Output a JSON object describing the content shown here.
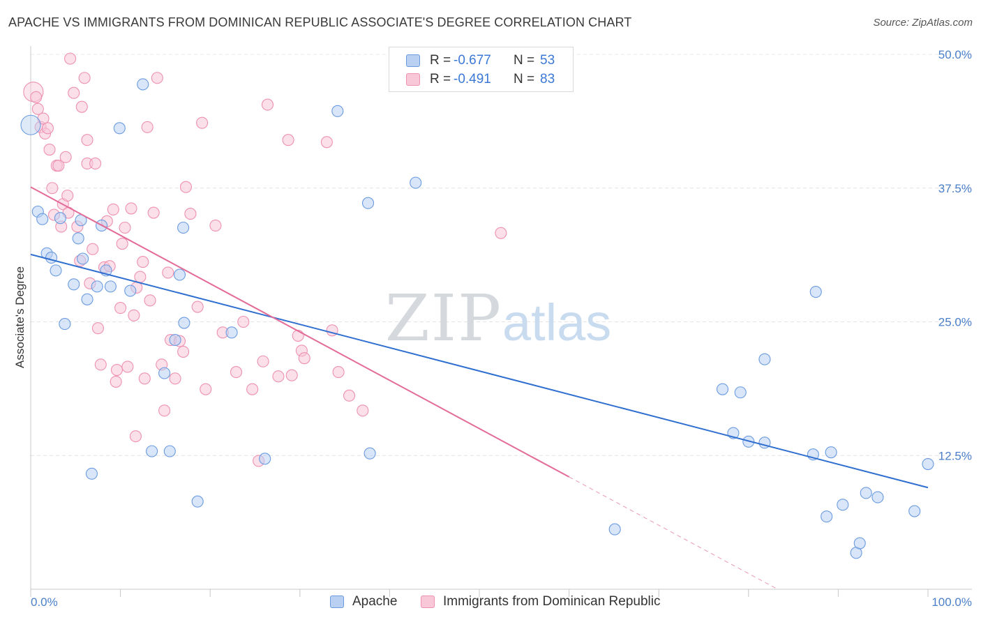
{
  "title": "APACHE VS IMMIGRANTS FROM DOMINICAN REPUBLIC ASSOCIATE'S DEGREE CORRELATION CHART",
  "source": "Source: ZipAtlas.com",
  "colors": {
    "apache": "#6a9be0",
    "apache_fill": "#b9d0f2",
    "dominican": "#ee90b0",
    "dominican_fill": "#f8c7d8",
    "apache_line": "#2f6fd0",
    "dominican_line": "#e36b98",
    "tick_text": "#4a7fc9"
  },
  "legend": {
    "rows": [
      {
        "r_label": "R =",
        "r_value": "-0.677",
        "n_label": "N =",
        "n_value": "53"
      },
      {
        "r_label": "R =",
        "r_value": "-0.491",
        "n_label": "N =",
        "n_value": "83"
      }
    ]
  },
  "bottom_legend": {
    "apache": "Apache",
    "dominican": "Immigrants from Dominican Republic"
  },
  "chart_data": {
    "type": "scatter",
    "title": "APACHE VS IMMIGRANTS FROM DOMINICAN REPUBLIC ASSOCIATE'S DEGREE CORRELATION CHART",
    "xlabel": "",
    "ylabel": "Associate's Degree",
    "xlim": [
      0,
      100
    ],
    "ylim": [
      0,
      50
    ],
    "x_tick_labels": [
      "0.0%",
      "100.0%"
    ],
    "y_ticks": [
      12.5,
      25.0,
      37.5,
      50.0
    ],
    "y_tick_labels": [
      "12.5%",
      "25.0%",
      "37.5%",
      "50.0%"
    ],
    "grid": true,
    "legend_position": "top-center",
    "series": [
      {
        "name": "Apache",
        "points": [
          [
            0.0,
            43.4
          ],
          [
            0.8,
            35.3
          ],
          [
            1.3,
            34.6
          ],
          [
            1.8,
            31.4
          ],
          [
            2.3,
            31.0
          ],
          [
            2.8,
            29.8
          ],
          [
            3.3,
            34.7
          ],
          [
            3.8,
            24.8
          ],
          [
            4.8,
            28.5
          ],
          [
            5.6,
            34.5
          ],
          [
            5.3,
            32.8
          ],
          [
            5.8,
            30.9
          ],
          [
            6.3,
            27.1
          ],
          [
            6.8,
            10.8
          ],
          [
            7.4,
            28.3
          ],
          [
            7.9,
            34.0
          ],
          [
            8.4,
            29.8
          ],
          [
            8.9,
            28.3
          ],
          [
            9.9,
            43.1
          ],
          [
            11.1,
            27.9
          ],
          [
            12.5,
            47.2
          ],
          [
            13.5,
            12.9
          ],
          [
            14.9,
            20.2
          ],
          [
            15.5,
            12.9
          ],
          [
            16.1,
            23.3
          ],
          [
            16.6,
            29.4
          ],
          [
            17.0,
            33.8
          ],
          [
            17.1,
            24.9
          ],
          [
            18.6,
            8.2
          ],
          [
            22.4,
            24.0
          ],
          [
            26.1,
            12.2
          ],
          [
            34.2,
            44.7
          ],
          [
            37.8,
            12.7
          ],
          [
            37.6,
            36.1
          ],
          [
            42.9,
            38.0
          ],
          [
            65.1,
            5.6
          ],
          [
            77.1,
            18.7
          ],
          [
            78.3,
            14.6
          ],
          [
            79.1,
            18.4
          ],
          [
            80.0,
            13.8
          ],
          [
            81.8,
            21.5
          ],
          [
            81.8,
            13.7
          ],
          [
            87.2,
            12.6
          ],
          [
            87.5,
            27.8
          ],
          [
            88.7,
            6.8
          ],
          [
            89.2,
            12.8
          ],
          [
            90.5,
            7.9
          ],
          [
            92.0,
            3.4
          ],
          [
            92.4,
            4.3
          ],
          [
            93.1,
            9.0
          ],
          [
            94.4,
            8.6
          ],
          [
            98.5,
            7.3
          ],
          [
            100.0,
            11.7
          ]
        ]
      },
      {
        "name": "Immigrants from Dominican Republic",
        "points": [
          [
            0.3,
            46.5
          ],
          [
            0.6,
            46.0
          ],
          [
            0.8,
            44.9
          ],
          [
            1.1,
            43.2
          ],
          [
            1.4,
            44.0
          ],
          [
            1.6,
            42.6
          ],
          [
            1.9,
            43.1
          ],
          [
            2.1,
            41.1
          ],
          [
            2.4,
            37.5
          ],
          [
            2.6,
            35.0
          ],
          [
            2.9,
            39.6
          ],
          [
            3.1,
            39.6
          ],
          [
            3.4,
            33.9
          ],
          [
            3.6,
            36.0
          ],
          [
            3.9,
            40.4
          ],
          [
            4.1,
            36.8
          ],
          [
            4.4,
            49.6
          ],
          [
            4.8,
            46.4
          ],
          [
            5.2,
            33.9
          ],
          [
            5.5,
            30.7
          ],
          [
            5.7,
            45.1
          ],
          [
            6.0,
            47.8
          ],
          [
            6.3,
            39.8
          ],
          [
            6.3,
            42.0
          ],
          [
            6.6,
            28.6
          ],
          [
            6.9,
            31.8
          ],
          [
            7.2,
            39.8
          ],
          [
            7.5,
            24.4
          ],
          [
            7.8,
            21.0
          ],
          [
            8.2,
            30.1
          ],
          [
            8.5,
            34.4
          ],
          [
            8.8,
            30.2
          ],
          [
            9.2,
            35.5
          ],
          [
            9.5,
            19.4
          ],
          [
            9.6,
            20.5
          ],
          [
            10.0,
            26.3
          ],
          [
            10.2,
            32.3
          ],
          [
            10.5,
            33.8
          ],
          [
            10.8,
            20.8
          ],
          [
            11.2,
            35.6
          ],
          [
            11.5,
            25.6
          ],
          [
            11.8,
            28.2
          ],
          [
            12.2,
            29.2
          ],
          [
            12.5,
            30.6
          ],
          [
            12.7,
            19.7
          ],
          [
            13.0,
            43.2
          ],
          [
            13.3,
            27.0
          ],
          [
            13.7,
            35.2
          ],
          [
            14.1,
            47.8
          ],
          [
            14.6,
            21.0
          ],
          [
            14.9,
            16.7
          ],
          [
            15.3,
            29.6
          ],
          [
            15.6,
            23.3
          ],
          [
            16.1,
            19.7
          ],
          [
            16.6,
            23.2
          ],
          [
            17.0,
            22.2
          ],
          [
            17.3,
            37.6
          ],
          [
            17.8,
            35.1
          ],
          [
            18.6,
            26.4
          ],
          [
            19.1,
            43.6
          ],
          [
            19.5,
            18.7
          ],
          [
            20.6,
            34.0
          ],
          [
            21.4,
            24.0
          ],
          [
            22.9,
            20.3
          ],
          [
            23.7,
            25.0
          ],
          [
            24.7,
            18.7
          ],
          [
            25.4,
            12.0
          ],
          [
            25.9,
            21.3
          ],
          [
            26.4,
            45.3
          ],
          [
            27.6,
            19.9
          ],
          [
            28.7,
            42.0
          ],
          [
            29.1,
            20.0
          ],
          [
            29.8,
            23.7
          ],
          [
            30.2,
            22.3
          ],
          [
            30.5,
            21.6
          ],
          [
            33.0,
            41.8
          ],
          [
            33.6,
            24.2
          ],
          [
            34.3,
            20.3
          ],
          [
            35.5,
            18.1
          ],
          [
            37.0,
            16.7
          ],
          [
            52.4,
            33.3
          ],
          [
            11.7,
            14.3
          ],
          [
            4.2,
            35.2
          ]
        ]
      }
    ],
    "trendlines": [
      {
        "name": "Apache",
        "x": [
          0,
          100
        ],
        "y": [
          31.3,
          9.5
        ]
      },
      {
        "name": "Immigrants from Dominican Republic",
        "x": [
          0,
          60
        ],
        "y": [
          37.6,
          10.5
        ],
        "dashed_extension_x": [
          60,
          83.2
        ]
      }
    ]
  }
}
